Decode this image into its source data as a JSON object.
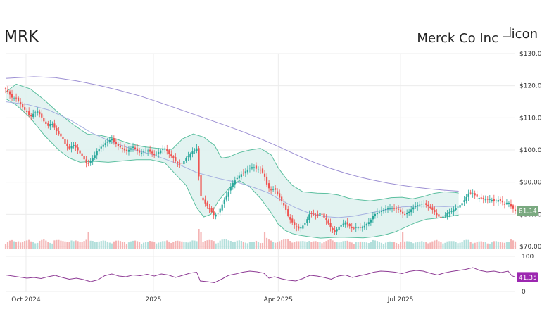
{
  "header": {
    "ticker": "MRK",
    "company": "Merck Co Inc",
    "logo_alt": "icon"
  },
  "chart_data": {
    "type": "candlestick",
    "price_panel": {
      "y_ticks": [
        "$130.0",
        "$120.0",
        "$110.0",
        "$100.0",
        "$90.00",
        "$80.00",
        "$70.00"
      ],
      "ylim": [
        70,
        130
      ],
      "last_price_label": "81.14",
      "last_price": 81.14,
      "ma_long": [
        [
          0,
          122.3
        ],
        [
          40,
          122.8
        ],
        [
          70,
          122.5
        ],
        [
          100,
          121.5
        ],
        [
          130,
          120.2
        ],
        [
          160,
          118.6
        ],
        [
          190,
          116.8
        ],
        [
          220,
          114.6
        ],
        [
          250,
          112.3
        ],
        [
          280,
          110.0
        ],
        [
          310,
          107.7
        ],
        [
          340,
          105.3
        ],
        [
          360,
          103.5
        ],
        [
          380,
          101.6
        ],
        [
          400,
          99.6
        ],
        [
          420,
          97.6
        ],
        [
          440,
          95.8
        ],
        [
          460,
          94.2
        ],
        [
          480,
          92.8
        ],
        [
          500,
          91.6
        ],
        [
          520,
          90.6
        ],
        [
          540,
          89.7
        ],
        [
          560,
          89.0
        ],
        [
          580,
          88.4
        ],
        [
          600,
          87.9
        ],
        [
          620,
          87.5
        ],
        [
          640,
          87.2
        ]
      ],
      "ma_mid": [
        [
          0,
          115.0
        ],
        [
          30,
          114.2
        ],
        [
          60,
          112.5
        ],
        [
          90,
          109.5
        ],
        [
          120,
          105.5
        ],
        [
          150,
          102.5
        ],
        [
          180,
          100.2
        ],
        [
          210,
          98.4
        ],
        [
          240,
          96.0
        ],
        [
          270,
          93.0
        ],
        [
          300,
          91.2
        ],
        [
          330,
          89.8
        ],
        [
          350,
          88.4
        ],
        [
          370,
          86.8
        ],
        [
          390,
          84.3
        ],
        [
          410,
          82.0
        ],
        [
          430,
          80.3
        ],
        [
          450,
          79.3
        ],
        [
          470,
          79.0
        ],
        [
          490,
          79.4
        ],
        [
          510,
          80.2
        ],
        [
          530,
          81.1
        ],
        [
          560,
          82.3
        ],
        [
          590,
          82.6
        ],
        [
          620,
          82.4
        ],
        [
          640,
          82.6
        ]
      ],
      "bb_upper": [
        [
          0,
          118.0
        ],
        [
          15,
          120.5
        ],
        [
          35,
          119.0
        ],
        [
          55,
          115.5
        ],
        [
          75,
          111.5
        ],
        [
          95,
          108.0
        ],
        [
          115,
          105.0
        ],
        [
          135,
          104.5
        ],
        [
          155,
          103.5
        ],
        [
          175,
          102.0
        ],
        [
          195,
          101.0
        ],
        [
          215,
          100.5
        ],
        [
          235,
          100.2
        ],
        [
          250,
          103.5
        ],
        [
          265,
          105.0
        ],
        [
          280,
          104.0
        ],
        [
          295,
          101.5
        ],
        [
          305,
          97.5
        ],
        [
          315,
          97.8
        ],
        [
          330,
          99.2
        ],
        [
          345,
          100.0
        ],
        [
          360,
          100.5
        ],
        [
          375,
          98.5
        ],
        [
          385,
          94.5
        ],
        [
          395,
          91.5
        ],
        [
          405,
          89.0
        ],
        [
          420,
          87.0
        ],
        [
          440,
          86.6
        ],
        [
          455,
          86.5
        ],
        [
          470,
          86.0
        ],
        [
          485,
          85.0
        ],
        [
          500,
          84.5
        ],
        [
          515,
          84.2
        ],
        [
          530,
          84.6
        ],
        [
          545,
          85.2
        ],
        [
          560,
          85.3
        ],
        [
          575,
          84.8
        ],
        [
          590,
          85.5
        ],
        [
          605,
          86.5
        ],
        [
          620,
          87.0
        ],
        [
          635,
          86.8
        ],
        [
          640,
          86.6
        ]
      ],
      "bb_lower": [
        [
          0,
          116.0
        ],
        [
          15,
          114.0
        ],
        [
          35,
          110.0
        ],
        [
          55,
          104.5
        ],
        [
          75,
          100.0
        ],
        [
          90,
          97.5
        ],
        [
          105,
          96.2
        ],
        [
          125,
          96.5
        ],
        [
          145,
          96.2
        ],
        [
          165,
          96.6
        ],
        [
          185,
          97.0
        ],
        [
          205,
          97.0
        ],
        [
          225,
          96.0
        ],
        [
          240,
          92.5
        ],
        [
          255,
          89.0
        ],
        [
          270,
          82.0
        ],
        [
          280,
          79.2
        ],
        [
          290,
          80.0
        ],
        [
          300,
          84.0
        ],
        [
          315,
          88.0
        ],
        [
          330,
          90.5
        ],
        [
          345,
          88.5
        ],
        [
          360,
          85.0
        ],
        [
          375,
          80.5
        ],
        [
          385,
          77.0
        ],
        [
          395,
          75.0
        ],
        [
          405,
          74.0
        ],
        [
          415,
          73.5
        ],
        [
          430,
          73.0
        ],
        [
          445,
          72.6
        ],
        [
          460,
          72.8
        ],
        [
          475,
          72.9
        ],
        [
          490,
          72.8
        ],
        [
          505,
          72.7
        ],
        [
          520,
          73.0
        ],
        [
          535,
          73.6
        ],
        [
          550,
          74.5
        ],
        [
          565,
          76.0
        ],
        [
          580,
          77.5
        ],
        [
          595,
          78.5
        ],
        [
          610,
          78.8
        ],
        [
          625,
          79.3
        ],
        [
          640,
          79.8
        ]
      ],
      "close_path": [
        [
          0,
          119.0
        ],
        [
          5,
          117.5
        ],
        [
          10,
          116.0
        ],
        [
          15,
          116.2
        ],
        [
          20,
          114.5
        ],
        [
          25,
          113.0
        ],
        [
          30,
          111.8
        ],
        [
          35,
          110.2
        ],
        [
          40,
          111.5
        ],
        [
          45,
          112.0
        ],
        [
          50,
          110.5
        ],
        [
          55,
          108.5
        ],
        [
          60,
          107.5
        ],
        [
          65,
          108.5
        ],
        [
          70,
          106.5
        ],
        [
          75,
          105.0
        ],
        [
          80,
          103.8
        ],
        [
          85,
          101.5
        ],
        [
          90,
          100.5
        ],
        [
          95,
          101.8
        ],
        [
          100,
          100.5
        ],
        [
          105,
          99.0
        ],
        [
          110,
          97.5
        ],
        [
          115,
          95.5
        ],
        [
          120,
          96.5
        ],
        [
          125,
          98.0
        ],
        [
          130,
          100.0
        ],
        [
          135,
          101.0
        ],
        [
          140,
          102.0
        ],
        [
          145,
          102.8
        ],
        [
          150,
          103.5
        ],
        [
          155,
          102.0
        ],
        [
          160,
          101.0
        ],
        [
          165,
          100.5
        ],
        [
          170,
          99.5
        ],
        [
          175,
          100.2
        ],
        [
          180,
          101.0
        ],
        [
          185,
          100.0
        ],
        [
          190,
          99.0
        ],
        [
          195,
          99.5
        ],
        [
          200,
          100.0
        ],
        [
          205,
          99.3
        ],
        [
          210,
          98.5
        ],
        [
          215,
          99.2
        ],
        [
          220,
          100.0
        ],
        [
          225,
          100.5
        ],
        [
          230,
          99.0
        ],
        [
          235,
          98.0
        ],
        [
          240,
          96.5
        ],
        [
          245,
          95.5
        ],
        [
          250,
          96.0
        ],
        [
          255,
          97.5
        ],
        [
          260,
          98.5
        ],
        [
          265,
          99.8
        ],
        [
          270,
          100.5
        ],
        [
          275,
          86.0
        ],
        [
          280,
          84.0
        ],
        [
          285,
          82.5
        ],
        [
          290,
          81.0
        ],
        [
          295,
          79.5
        ],
        [
          300,
          80.5
        ],
        [
          305,
          82.5
        ],
        [
          310,
          85.0
        ],
        [
          315,
          87.0
        ],
        [
          320,
          89.5
        ],
        [
          325,
          90.8
        ],
        [
          330,
          92.0
        ],
        [
          335,
          92.8
        ],
        [
          340,
          93.5
        ],
        [
          345,
          94.5
        ],
        [
          350,
          94.8
        ],
        [
          355,
          94.0
        ],
        [
          360,
          93.8
        ],
        [
          365,
          92.5
        ],
        [
          370,
          88.5
        ],
        [
          375,
          87.5
        ],
        [
          380,
          88.0
        ],
        [
          385,
          86.0
        ],
        [
          390,
          84.0
        ],
        [
          395,
          82.0
        ],
        [
          400,
          79.0
        ],
        [
          405,
          77.5
        ],
        [
          410,
          76.0
        ],
        [
          415,
          75.5
        ],
        [
          420,
          76.5
        ],
        [
          425,
          78.0
        ],
        [
          430,
          80.5
        ],
        [
          435,
          80.0
        ],
        [
          440,
          79.5
        ],
        [
          445,
          80.5
        ],
        [
          450,
          79.0
        ],
        [
          455,
          77.5
        ],
        [
          460,
          75.5
        ],
        [
          465,
          74.5
        ],
        [
          470,
          76.0
        ],
        [
          475,
          76.8
        ],
        [
          480,
          77.5
        ],
        [
          485,
          76.5
        ],
        [
          490,
          75.5
        ],
        [
          495,
          76.0
        ],
        [
          500,
          75.8
        ],
        [
          505,
          76.0
        ],
        [
          510,
          77.0
        ],
        [
          515,
          78.0
        ],
        [
          520,
          79.8
        ],
        [
          525,
          80.5
        ],
        [
          530,
          81.0
        ],
        [
          535,
          81.5
        ],
        [
          540,
          81.8
        ],
        [
          545,
          82.0
        ],
        [
          550,
          81.8
        ],
        [
          555,
          81.5
        ],
        [
          560,
          80.2
        ],
        [
          565,
          80.0
        ],
        [
          570,
          80.8
        ],
        [
          575,
          82.0
        ],
        [
          580,
          82.8
        ],
        [
          585,
          83.0
        ],
        [
          590,
          83.5
        ],
        [
          595,
          82.8
        ],
        [
          600,
          82.0
        ],
        [
          605,
          81.0
        ],
        [
          610,
          79.5
        ],
        [
          615,
          79.0
        ],
        [
          620,
          79.5
        ],
        [
          625,
          80.5
        ],
        [
          630,
          81.0
        ],
        [
          635,
          81.8
        ],
        [
          640,
          82.5
        ],
        [
          645,
          83.5
        ],
        [
          650,
          85.0
        ],
        [
          655,
          86.8
        ],
        [
          660,
          86.5
        ],
        [
          665,
          85.5
        ],
        [
          670,
          85.0
        ],
        [
          675,
          84.8
        ],
        [
          680,
          84.5
        ],
        [
          685,
          84.8
        ],
        [
          690,
          84.0
        ],
        [
          695,
          84.5
        ],
        [
          700,
          84.2
        ],
        [
          705,
          83.0
        ],
        [
          710,
          84.0
        ],
        [
          715,
          82.0
        ],
        [
          720,
          81.14
        ]
      ],
      "volume_ylim": [
        0,
        1
      ]
    },
    "indicator_panel": {
      "y_ticks": [
        "100",
        "0"
      ],
      "ylim": [
        0,
        100
      ],
      "last_value_label": "41.35",
      "last_value": 41.35,
      "rsi_path": [
        [
          0,
          47
        ],
        [
          10,
          44
        ],
        [
          20,
          41
        ],
        [
          30,
          38
        ],
        [
          40,
          40
        ],
        [
          50,
          37
        ],
        [
          60,
          42
        ],
        [
          70,
          46
        ],
        [
          80,
          40
        ],
        [
          90,
          35
        ],
        [
          100,
          38
        ],
        [
          110,
          34
        ],
        [
          120,
          28
        ],
        [
          130,
          33
        ],
        [
          140,
          45
        ],
        [
          150,
          50
        ],
        [
          160,
          44
        ],
        [
          170,
          42
        ],
        [
          180,
          47
        ],
        [
          190,
          45
        ],
        [
          200,
          49
        ],
        [
          210,
          44
        ],
        [
          220,
          50
        ],
        [
          230,
          47
        ],
        [
          240,
          40
        ],
        [
          250,
          46
        ],
        [
          260,
          52
        ],
        [
          270,
          55
        ],
        [
          275,
          30
        ],
        [
          285,
          28
        ],
        [
          295,
          25
        ],
        [
          305,
          35
        ],
        [
          315,
          46
        ],
        [
          325,
          50
        ],
        [
          335,
          55
        ],
        [
          345,
          58
        ],
        [
          355,
          56
        ],
        [
          365,
          52
        ],
        [
          372,
          38
        ],
        [
          380,
          42
        ],
        [
          390,
          36
        ],
        [
          400,
          32
        ],
        [
          410,
          30
        ],
        [
          420,
          37
        ],
        [
          430,
          46
        ],
        [
          440,
          44
        ],
        [
          450,
          40
        ],
        [
          460,
          35
        ],
        [
          470,
          44
        ],
        [
          480,
          47
        ],
        [
          490,
          40
        ],
        [
          500,
          45
        ],
        [
          510,
          49
        ],
        [
          520,
          55
        ],
        [
          530,
          58
        ],
        [
          540,
          57
        ],
        [
          550,
          55
        ],
        [
          560,
          51
        ],
        [
          570,
          57
        ],
        [
          580,
          60
        ],
        [
          590,
          58
        ],
        [
          600,
          52
        ],
        [
          610,
          47
        ],
        [
          620,
          53
        ],
        [
          630,
          57
        ],
        [
          640,
          60
        ],
        [
          650,
          63
        ],
        [
          660,
          68
        ],
        [
          670,
          60
        ],
        [
          680,
          56
        ],
        [
          690,
          58
        ],
        [
          700,
          54
        ],
        [
          710,
          58
        ],
        [
          715,
          45
        ],
        [
          720,
          41.35
        ]
      ]
    },
    "x_ticks": [
      {
        "label": "Oct 2024",
        "pos": 0.04
      },
      {
        "label": "2025",
        "pos": 0.29
      },
      {
        "label": "Apr 2025",
        "pos": 0.535
      },
      {
        "label": "Jul 2025",
        "pos": 0.775
      }
    ]
  },
  "colors": {
    "up": "#26a69a",
    "down": "#ef5350",
    "up_volume": "#b2dfdb",
    "down_volume": "#f4b4b4",
    "bollinger_fill": "#e0f2ef",
    "bollinger_line": "#5bbf9f",
    "ma_long": "#9c8fd3",
    "ma_mid": "#a5b0e0",
    "rsi_line": "#8e3b95",
    "rsi_badge": "#9c27b0",
    "price_badge": "#7aa980",
    "grid": "#ececec"
  }
}
